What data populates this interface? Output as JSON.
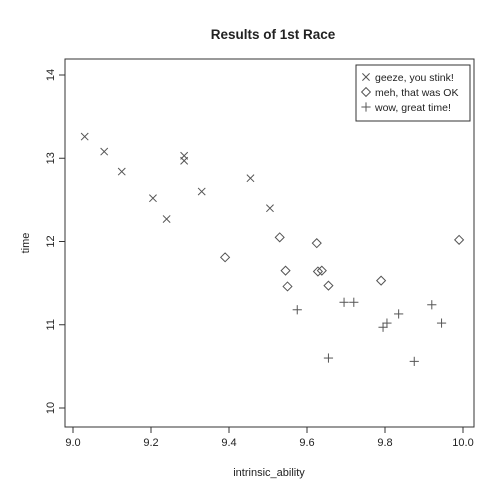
{
  "chart_data": {
    "type": "scatter",
    "title": "Results of 1st Race",
    "xlabel": "intrinsic_ability",
    "ylabel": "time",
    "xlim": [
      9.0,
      10.0
    ],
    "ylim": [
      10.0,
      14.0
    ],
    "xticks": [
      9.0,
      9.2,
      9.4,
      9.6,
      9.8,
      10.0
    ],
    "yticks": [
      10,
      11,
      12,
      13,
      14
    ],
    "xtick_labels": [
      "9.0",
      "9.2",
      "9.4",
      "9.6",
      "9.8",
      "10.0"
    ],
    "ytick_labels": [
      "10",
      "11",
      "12",
      "13",
      "14"
    ],
    "grid": false,
    "legend_position": "top-right",
    "series": [
      {
        "name": "geeze, you stink!",
        "marker": "x",
        "color": "#555555",
        "points": [
          [
            9.03,
            13.26
          ],
          [
            9.08,
            13.08
          ],
          [
            9.125,
            12.84
          ],
          [
            9.205,
            12.52
          ],
          [
            9.24,
            12.27
          ],
          [
            9.285,
            13.03
          ],
          [
            9.285,
            12.97
          ],
          [
            9.33,
            12.6
          ],
          [
            9.455,
            12.76
          ],
          [
            9.505,
            12.4
          ]
        ]
      },
      {
        "name": "meh, that was OK",
        "marker": "diamond",
        "color": "#555555",
        "points": [
          [
            9.39,
            11.81
          ],
          [
            9.53,
            12.05
          ],
          [
            9.545,
            11.65
          ],
          [
            9.55,
            11.46
          ],
          [
            9.625,
            11.98
          ],
          [
            9.628,
            11.64
          ],
          [
            9.638,
            11.65
          ],
          [
            9.655,
            11.47
          ],
          [
            9.79,
            11.53
          ],
          [
            9.99,
            12.02
          ]
        ]
      },
      {
        "name": "wow, great time!",
        "marker": "plus",
        "color": "#555555",
        "points": [
          [
            9.575,
            11.18
          ],
          [
            9.655,
            10.6
          ],
          [
            9.695,
            11.27
          ],
          [
            9.72,
            11.27
          ],
          [
            9.795,
            10.97
          ],
          [
            9.805,
            11.02
          ],
          [
            9.835,
            11.13
          ],
          [
            9.875,
            10.56
          ],
          [
            9.92,
            11.24
          ],
          [
            9.945,
            11.02
          ]
        ]
      }
    ]
  }
}
